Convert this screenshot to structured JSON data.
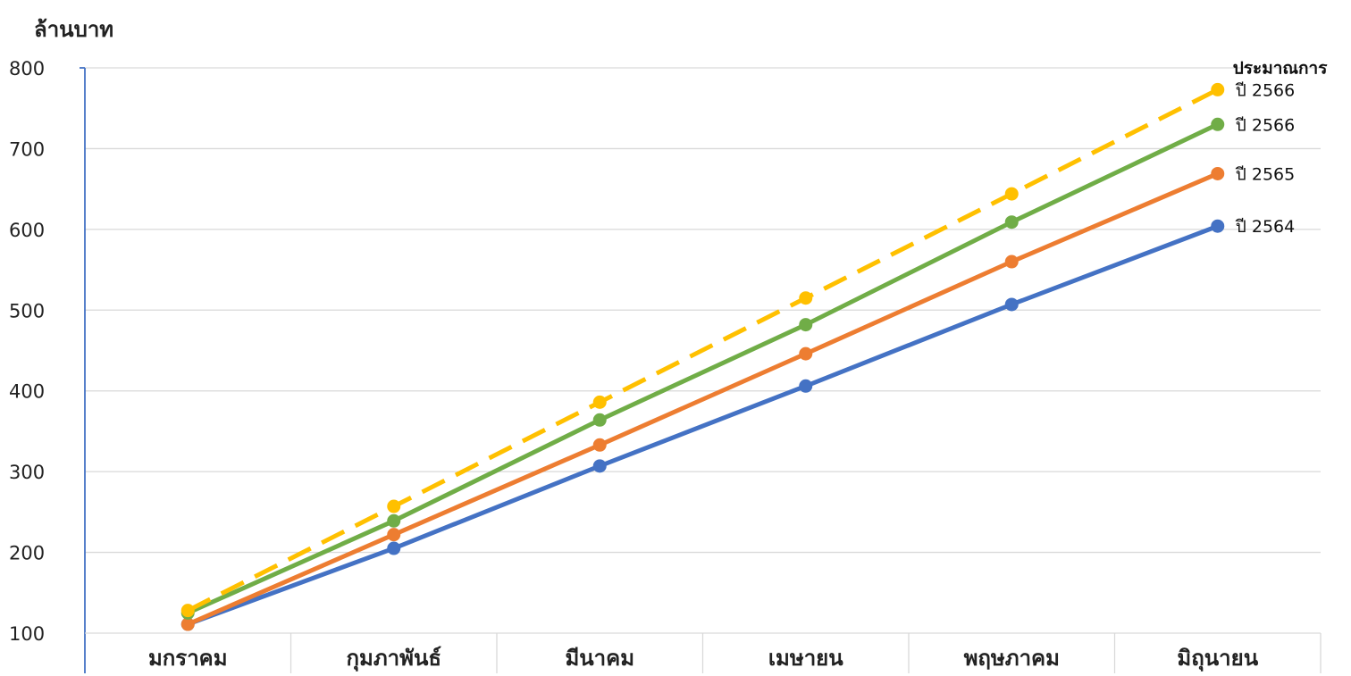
{
  "chart_data": {
    "type": "line",
    "ylabel": "ล้านบาท",
    "xlabel": "",
    "title": "",
    "ylim": [
      100,
      800
    ],
    "yticks": [
      100,
      200,
      300,
      400,
      500,
      600,
      700,
      800
    ],
    "categories": [
      "มกราคม",
      "กุมภาพันธ์",
      "มีนาคม",
      "เมษายน",
      "พฤษภาคม",
      "มิถุนายน"
    ],
    "grid": true,
    "series": [
      {
        "label_line1": "",
        "label_line2": "ปี 2564",
        "color": "#4472C4",
        "dashed": false,
        "values": [
          111,
          205,
          307,
          406,
          507,
          604
        ]
      },
      {
        "label_line1": "",
        "label_line2": "ปี 2565",
        "color": "#ED7D31",
        "dashed": false,
        "values": [
          111,
          222,
          333,
          446,
          560,
          669
        ]
      },
      {
        "label_line1": "",
        "label_line2": "ปี 2566",
        "color": "#70AD47",
        "dashed": false,
        "values": [
          125,
          239,
          364,
          482,
          609,
          730
        ]
      },
      {
        "label_line1": "ประมาณการ",
        "label_line2": "ปี 2566",
        "color": "#FFC000",
        "dashed": true,
        "values": [
          128,
          257,
          386,
          515,
          644,
          773
        ]
      }
    ]
  }
}
